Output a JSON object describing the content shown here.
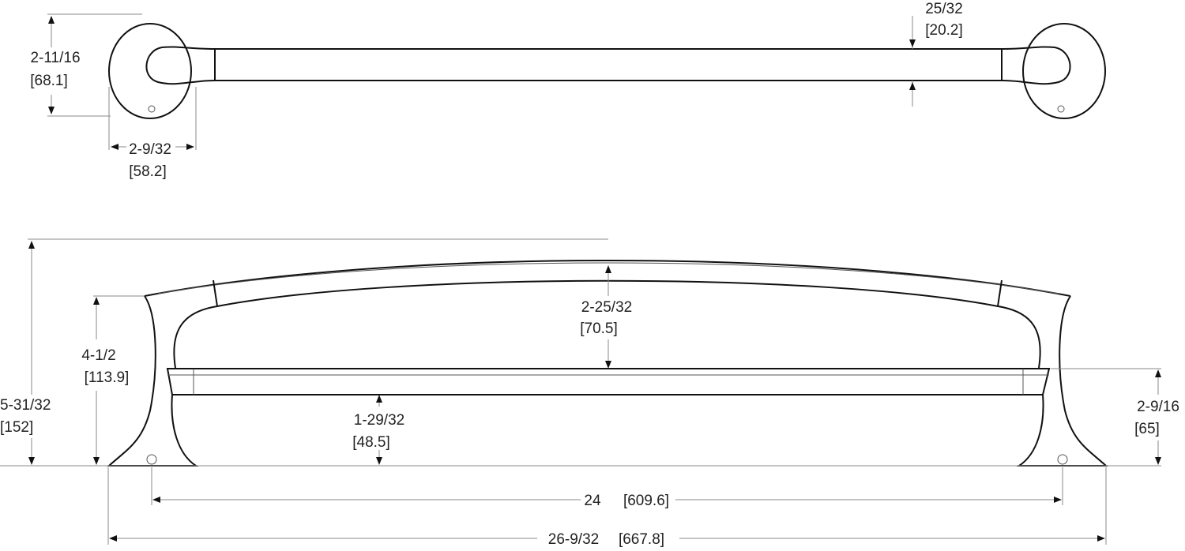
{
  "dimensions": [
    {
      "imperial": "2-11/16",
      "metric": "[68.1]"
    },
    {
      "imperial": "2-9/32",
      "metric": "[58.2]"
    },
    {
      "imperial": "25/32",
      "metric": "[20.2]"
    },
    {
      "imperial": "2-25/32",
      "metric": "[70.5]"
    },
    {
      "imperial": "4-1/2",
      "metric": "[113.9]"
    },
    {
      "imperial": "5-31/32",
      "metric": "[152]"
    },
    {
      "imperial": "1-29/32",
      "metric": "[48.5]"
    },
    {
      "imperial": "2-9/16",
      "metric": "[65]"
    },
    {
      "imperial": "24",
      "metric": "[609.6]"
    },
    {
      "imperial": "26-9/32",
      "metric": "[667.8]"
    }
  ]
}
